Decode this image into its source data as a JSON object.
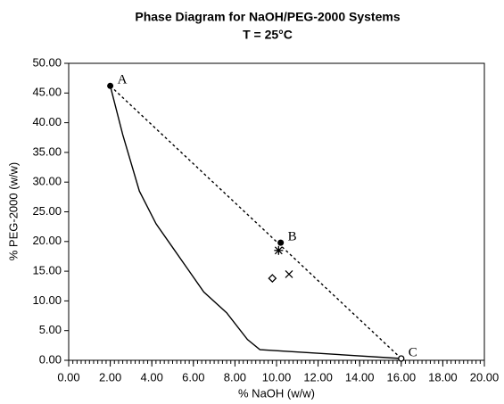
{
  "chart_data": {
    "type": "scatter",
    "title": "Phase Diagram for NaOH/PEG-2000 Systems",
    "subtitle": "T = 25°C",
    "x_label": "% NaOH (w/w)",
    "y_label": "% PEG-2000 (w/w)",
    "xlim": [
      0,
      20
    ],
    "ylim": [
      0,
      50
    ],
    "xticks": [
      {
        "value": 0,
        "label": "0.00"
      },
      {
        "value": 2,
        "label": "2.00"
      },
      {
        "value": 4,
        "label": "4.00"
      },
      {
        "value": 6,
        "label": "6.00"
      },
      {
        "value": 8,
        "label": "8.00"
      },
      {
        "value": 10,
        "label": "10.00"
      },
      {
        "value": 12,
        "label": "12.00"
      },
      {
        "value": 14,
        "label": "14.00"
      },
      {
        "value": 16,
        "label": "16.00"
      },
      {
        "value": 18,
        "label": "18.00"
      },
      {
        "value": 20,
        "label": "20.00"
      }
    ],
    "yticks": [
      {
        "value": 0,
        "label": "0.00"
      },
      {
        "value": 5,
        "label": "5.00"
      },
      {
        "value": 10,
        "label": "10.00"
      },
      {
        "value": 15,
        "label": "15.00"
      },
      {
        "value": 20,
        "label": "20.00"
      },
      {
        "value": 25,
        "label": "25.00"
      },
      {
        "value": 30,
        "label": "30.00"
      },
      {
        "value": 35,
        "label": "35.00"
      },
      {
        "value": 40,
        "label": "40.00"
      },
      {
        "value": 45,
        "label": "45.00"
      },
      {
        "value": 50,
        "label": "50.00"
      }
    ],
    "xminor": 0.2,
    "series": [
      {
        "color": "#000000",
        "line": "solid",
        "x": [
          2.0,
          2.6,
          3.4,
          4.2,
          5.0,
          5.7,
          6.5,
          7.6,
          8.6,
          9.2,
          16.0
        ],
        "values": [
          46.2,
          38.0,
          28.5,
          23.0,
          19.0,
          15.5,
          11.5,
          8.0,
          3.5,
          1.8,
          0.3
        ]
      },
      {
        "color": "#000000",
        "line": "dashed",
        "x": [
          2.0,
          16.0
        ],
        "values": [
          46.2,
          0.3
        ]
      }
    ],
    "markers": [
      {
        "label": "A",
        "symbol": "dot",
        "x": 2.0,
        "y": 46.2
      },
      {
        "label": "B",
        "symbol": "dot",
        "x": 10.2,
        "y": 19.8
      },
      {
        "label": "C",
        "symbol": "open",
        "x": 16.0,
        "y": 0.3
      },
      {
        "symbol": "asterisk",
        "x": 10.1,
        "y": 18.5
      },
      {
        "symbol": "diamond",
        "x": 9.8,
        "y": 13.8
      },
      {
        "symbol": "cross",
        "x": 10.6,
        "y": 14.5
      }
    ]
  }
}
